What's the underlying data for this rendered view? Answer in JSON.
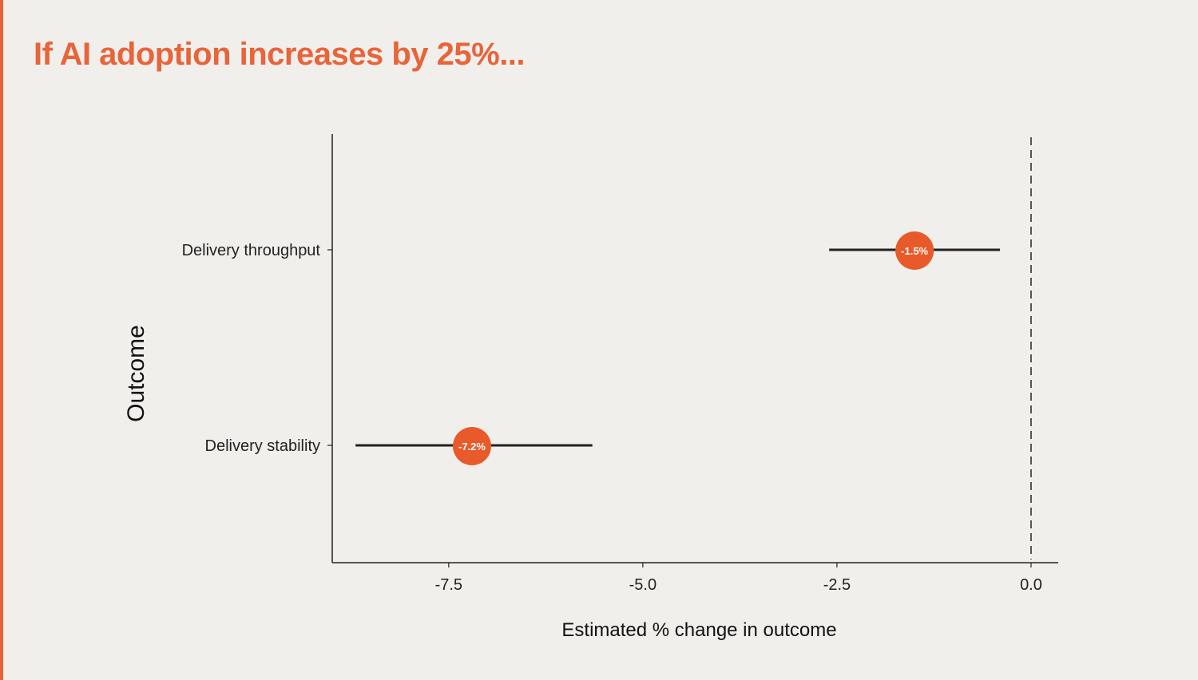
{
  "page": {
    "title": "If AI adoption increases by 25%..."
  },
  "colors": {
    "accent": "#e8643a",
    "point": "#e85a2a",
    "background": "#f0efeb",
    "line": "#222222"
  },
  "chart_data": {
    "type": "scatter",
    "title": "If AI adoption increases by 25%...",
    "xlabel": "Estimated % change in outcome",
    "ylabel": "Outcome",
    "xlim": [
      -9.0,
      0.35
    ],
    "x_ticks": [
      -7.5,
      -5.0,
      -2.5,
      0.0
    ],
    "x_tick_labels": [
      "-7.5",
      "-5.0",
      "-2.5",
      "0.0"
    ],
    "reference_line": {
      "x": 0.0,
      "style": "dashed"
    },
    "grid": false,
    "categories": [
      "Delivery throughput",
      "Delivery stability"
    ],
    "points": [
      {
        "category": "Delivery throughput",
        "estimate": -1.5,
        "ci_low": -2.6,
        "ci_high": -0.4,
        "label": "-1.5%"
      },
      {
        "category": "Delivery stability",
        "estimate": -7.2,
        "ci_low": -8.7,
        "ci_high": -5.65,
        "label": "-7.2%"
      }
    ]
  }
}
